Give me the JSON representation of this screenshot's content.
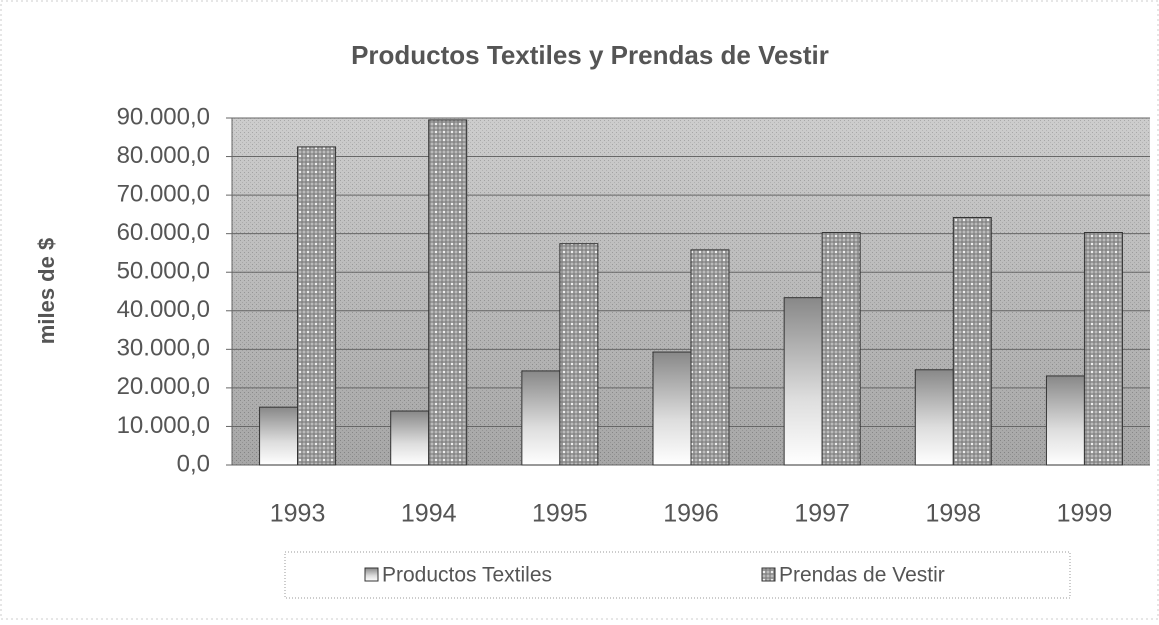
{
  "chart_data": {
    "type": "bar",
    "title": "Productos Textiles y Prendas de Vestir",
    "y_label": "miles de $",
    "categories": [
      "1993",
      "1994",
      "1995",
      "1996",
      "1997",
      "1998",
      "1999"
    ],
    "series": [
      {
        "name": "Productos Textiles",
        "color": "#ffffff",
        "values": [
          15000,
          14000,
          24400,
          29300,
          43400,
          24700,
          23100
        ]
      },
      {
        "name": "Prendas de Vestir",
        "color": "#9a9a9a",
        "values": [
          82500,
          89500,
          57400,
          55800,
          60300,
          64200,
          60300
        ]
      }
    ],
    "ylim": [
      0,
      90000
    ],
    "yticks": [
      {
        "value": 0,
        "label": "0,0"
      },
      {
        "value": 10000,
        "label": "10.000,0"
      },
      {
        "value": 20000,
        "label": "20.000,0"
      },
      {
        "value": 30000,
        "label": "30.000,0"
      },
      {
        "value": 40000,
        "label": "40.000,0"
      },
      {
        "value": 50000,
        "label": "50.000,0"
      },
      {
        "value": 60000,
        "label": "60.000,0"
      },
      {
        "value": 70000,
        "label": "70.000,0"
      },
      {
        "value": 80000,
        "label": "80.000,0"
      },
      {
        "value": 90000,
        "label": "90.000,0"
      }
    ],
    "grid": true
  }
}
